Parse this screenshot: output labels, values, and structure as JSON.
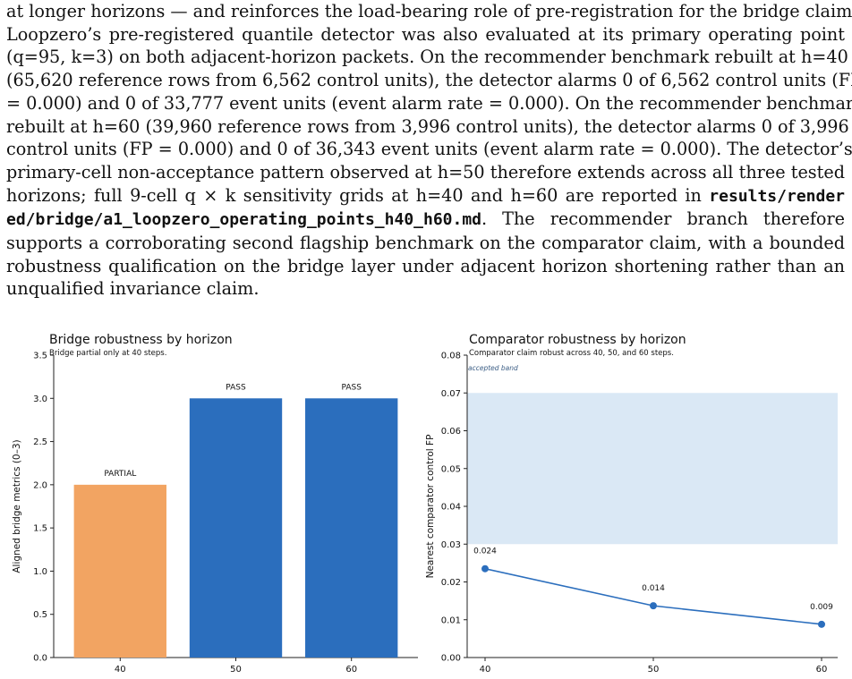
{
  "paragraph": {
    "lines": [
      "at longer horizons — and reinforces the load-bearing role of pre-registration for the bridge claim.",
      "Loopzero’s pre-registered quantile detector was also evaluated at its primary operating point",
      "(q=95, k=3) on both adjacent-horizon packets. On the recommender benchmark rebuilt at h=40",
      "(65,620 reference rows from 6,562 control units), the detector alarms 0 of 6,562 control units (FP",
      "= 0.000) and 0 of 33,777 event units (event alarm rate = 0.000). On the recommender benchmark",
      "rebuilt at h=60 (39,960 reference rows from 3,996 control units), the detector alarms 0 of 3,996",
      "control units (FP = 0.000) and 0 of 36,343 event units (event alarm rate = 0.000). The detector’s",
      "primary-cell non-acceptance pattern observed at h=50 therefore extends across all three tested",
      "horizons; full 9-cell q × k sensitivity grids at h=40 and h=60 are reported in ",
      "ed/bridge/a1_loopzero_operating_points_h40_h60.md",
      ". The recommender branch therefore",
      "supports a corroborating second flagship benchmark on the comparator claim, with a bounded",
      "robustness qualification on the bridge layer under adjacent horizon shortening rather than an",
      "unqualified invariance claim."
    ],
    "code_a": "results/render"
  },
  "chart_data": [
    {
      "type": "bar",
      "title": "Bridge robustness by horizon",
      "subtitle": "Bridge partial only at 40 steps.",
      "xlabel": "",
      "ylabel": "Aligned bridge metrics (0–3)",
      "categories": [
        "40",
        "50",
        "60"
      ],
      "values": [
        2,
        3,
        3
      ],
      "bar_labels": [
        "PARTIAL",
        "PASS",
        "PASS"
      ],
      "bar_colors": [
        "#f2a462",
        "#2b6ebd",
        "#2b6ebd"
      ],
      "ylim": [
        0,
        3.5
      ],
      "yticks": [
        "0.0",
        "0.5",
        "1.0",
        "1.5",
        "2.0",
        "2.5",
        "3.0",
        "3.5"
      ],
      "grid": false
    },
    {
      "type": "line",
      "title": "Comparator robustness by horizon",
      "subtitle": "Comparator claim robust across 40, 50, and 60 steps.",
      "xlabel": "",
      "ylabel": "Nearest comparator control FP",
      "x": [
        40,
        50,
        60
      ],
      "xticks": [
        "40",
        "50",
        "60"
      ],
      "values": [
        0.0235,
        0.0137,
        0.0088
      ],
      "point_labels": [
        "0.024",
        "0.014",
        "0.009"
      ],
      "band": {
        "label": "accepted band",
        "y0": 0.03,
        "y1": 0.07,
        "color": "#dae8f5"
      },
      "line_color": "#2b6ebd",
      "ylim": [
        0,
        0.08
      ],
      "yticks": [
        "0.00",
        "0.01",
        "0.02",
        "0.03",
        "0.04",
        "0.05",
        "0.06",
        "0.07",
        "0.08"
      ],
      "grid": false
    }
  ]
}
